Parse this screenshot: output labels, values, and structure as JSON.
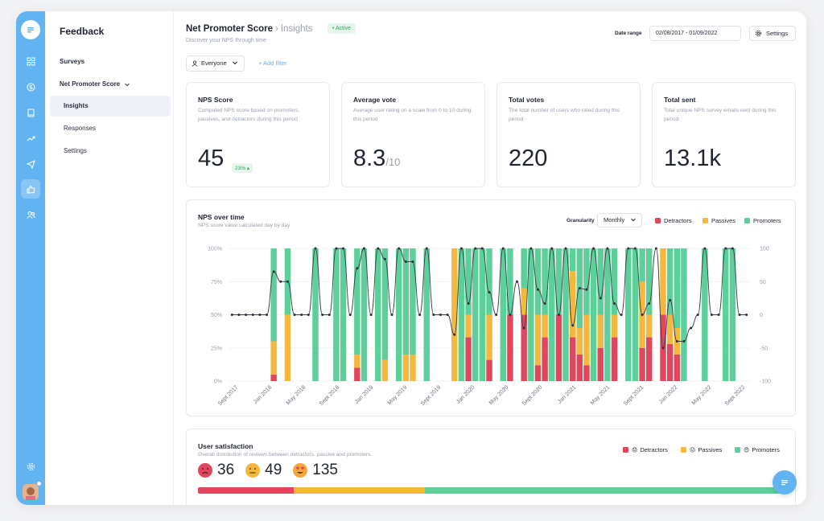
{
  "app": {
    "section_title": "Feedback"
  },
  "sidebar": {
    "items": [
      {
        "label": "Surveys"
      },
      {
        "label": "Net Promoter Score"
      }
    ],
    "subitems": [
      {
        "label": "Insights",
        "active": true
      },
      {
        "label": "Responses"
      },
      {
        "label": "Settings"
      }
    ]
  },
  "rail": {
    "icons": [
      "grid-icon",
      "dollar-icon",
      "book-icon",
      "trend-icon",
      "send-icon",
      "thumbs-up-icon",
      "users-icon",
      "gear-icon"
    ]
  },
  "header": {
    "breadcrumb_root": "Net Promoter Score",
    "breadcrumb_sep": "›",
    "breadcrumb_current": "Insights",
    "status": "• Active",
    "subtitle": "Discover your NPS through time",
    "date_range_label": "Date range",
    "date_range_value": "02/08/2017 - 01/09/2022",
    "settings_label": "Settings"
  },
  "filters": {
    "audience": "Everyone",
    "add_filter": "+ Add filter"
  },
  "kpis": [
    {
      "title": "NPS Score",
      "desc": "Computed NPS score based on promoters, passives, and detractors during this period",
      "value": "45",
      "badge": "23% ▴"
    },
    {
      "title": "Average vote",
      "desc": "Average user rating on a scale from 0 to 10 during this period",
      "value": "8.3",
      "suffix": "/10"
    },
    {
      "title": "Total votes",
      "desc": "The total number of users who rated during this period",
      "value": "220"
    },
    {
      "title": "Total sent",
      "desc": "Total unique NPS survey emails sent during this period",
      "value": "13.1k"
    }
  ],
  "nps_chart": {
    "title": "NPS over time",
    "desc": "NPS score value calculated day by day",
    "granularity_label": "Granularity",
    "granularity_value": "Monthly",
    "legend": [
      {
        "label": "Detractors",
        "color": "#e0475c"
      },
      {
        "label": "Passives",
        "color": "#f3b83d"
      },
      {
        "label": "Promoters",
        "color": "#5ccf9a"
      }
    ]
  },
  "chart_data": {
    "type": "bar",
    "title": "NPS over time",
    "stacked": true,
    "x_tick_labels": [
      "Sept 2017",
      "Jan 2018",
      "May 2018",
      "Sept 2018",
      "Jan 2019",
      "May 2019",
      "Sept 2019",
      "Jan 2020",
      "May 2020",
      "Sept 2020",
      "Jan 2021",
      "May 2021",
      "Sept 2021",
      "Jan 2022",
      "May 2022",
      "Sept 2022"
    ],
    "y_left_ticks": [
      "0%",
      "25%",
      "50%",
      "75%",
      "100%"
    ],
    "y_right_ticks": [
      "-100",
      "-50",
      "0",
      "50",
      "100"
    ],
    "ylim_left": [
      0,
      100
    ],
    "ylim_right": [
      -100,
      100
    ],
    "series": [
      {
        "name": "Detractors",
        "values": [
          0,
          0,
          0,
          0,
          0,
          0,
          5,
          0,
          0,
          0,
          0,
          0,
          0,
          0,
          0,
          0,
          0,
          0,
          10,
          0,
          0,
          0,
          0,
          0,
          0,
          0,
          0,
          0,
          0,
          0,
          0,
          0,
          0,
          0,
          33,
          0,
          0,
          16,
          0,
          0,
          50,
          0,
          50,
          0,
          12,
          33,
          0,
          50,
          0,
          33,
          20,
          12,
          0,
          25,
          0,
          33,
          0,
          0,
          0,
          25,
          33,
          0,
          50,
          28,
          20,
          0,
          0,
          0,
          0,
          0,
          0,
          0,
          0,
          0,
          0
        ]
      },
      {
        "name": "Passives",
        "values": [
          0,
          0,
          0,
          0,
          0,
          0,
          25,
          0,
          50,
          0,
          0,
          0,
          0,
          0,
          0,
          0,
          0,
          0,
          10,
          0,
          0,
          0,
          16,
          0,
          0,
          20,
          20,
          0,
          0,
          0,
          0,
          0,
          100,
          0,
          17,
          0,
          0,
          34,
          0,
          0,
          0,
          0,
          20,
          0,
          38,
          17,
          0,
          0,
          0,
          50,
          20,
          38,
          0,
          25,
          0,
          17,
          0,
          0,
          0,
          50,
          17,
          0,
          50,
          22,
          20,
          0,
          0,
          0,
          0,
          0,
          0,
          0,
          0,
          0,
          0
        ]
      },
      {
        "name": "Promoters",
        "values": [
          0,
          0,
          0,
          0,
          0,
          0,
          70,
          0,
          50,
          0,
          0,
          0,
          100,
          0,
          0,
          100,
          100,
          0,
          80,
          100,
          0,
          100,
          84,
          0,
          100,
          80,
          80,
          0,
          100,
          0,
          0,
          0,
          0,
          100,
          50,
          100,
          100,
          50,
          0,
          100,
          50,
          0,
          30,
          100,
          50,
          50,
          100,
          50,
          100,
          17,
          60,
          50,
          100,
          50,
          100,
          50,
          0,
          100,
          100,
          25,
          50,
          0,
          0,
          50,
          60,
          100,
          0,
          0,
          100,
          0,
          0,
          100,
          100,
          0,
          0
        ]
      },
      {
        "name": "NPS",
        "axis": "right",
        "values": [
          0,
          0,
          0,
          0,
          0,
          0,
          65,
          50,
          50,
          0,
          0,
          0,
          100,
          0,
          0,
          100,
          100,
          0,
          70,
          100,
          0,
          100,
          84,
          0,
          100,
          80,
          80,
          0,
          100,
          0,
          0,
          0,
          -30,
          100,
          17,
          100,
          100,
          34,
          0,
          100,
          0,
          50,
          -20,
          100,
          38,
          17,
          100,
          0,
          100,
          -16,
          40,
          38,
          100,
          25,
          100,
          17,
          0,
          100,
          100,
          0,
          17,
          100,
          -50,
          22,
          -40,
          -40,
          -20,
          0,
          100,
          0,
          0,
          100,
          100,
          0,
          0
        ]
      }
    ]
  },
  "satisfaction": {
    "title": "User satisfaction",
    "desc": "Overall distribution of reviews between detractors, passive and promoters.",
    "legend": [
      {
        "label": "Detractors",
        "color": "#e0475c",
        "emoji": "😞"
      },
      {
        "label": "Passives",
        "color": "#f3b83d",
        "emoji": "😐"
      },
      {
        "label": "Promoters",
        "color": "#5ccf9a",
        "emoji": "😍"
      }
    ],
    "counts": [
      {
        "emoji": "😞",
        "value": "36",
        "color": "#e0475c"
      },
      {
        "emoji": "😐",
        "value": "49",
        "color": "#f3b83d"
      },
      {
        "emoji": "😍",
        "value": "135",
        "color": "#5ccf9a"
      }
    ]
  },
  "colors": {
    "accent": "#62b3f2",
    "detractors": "#e0475c",
    "passives": "#f3b83d",
    "promoters": "#5ccf9a"
  }
}
